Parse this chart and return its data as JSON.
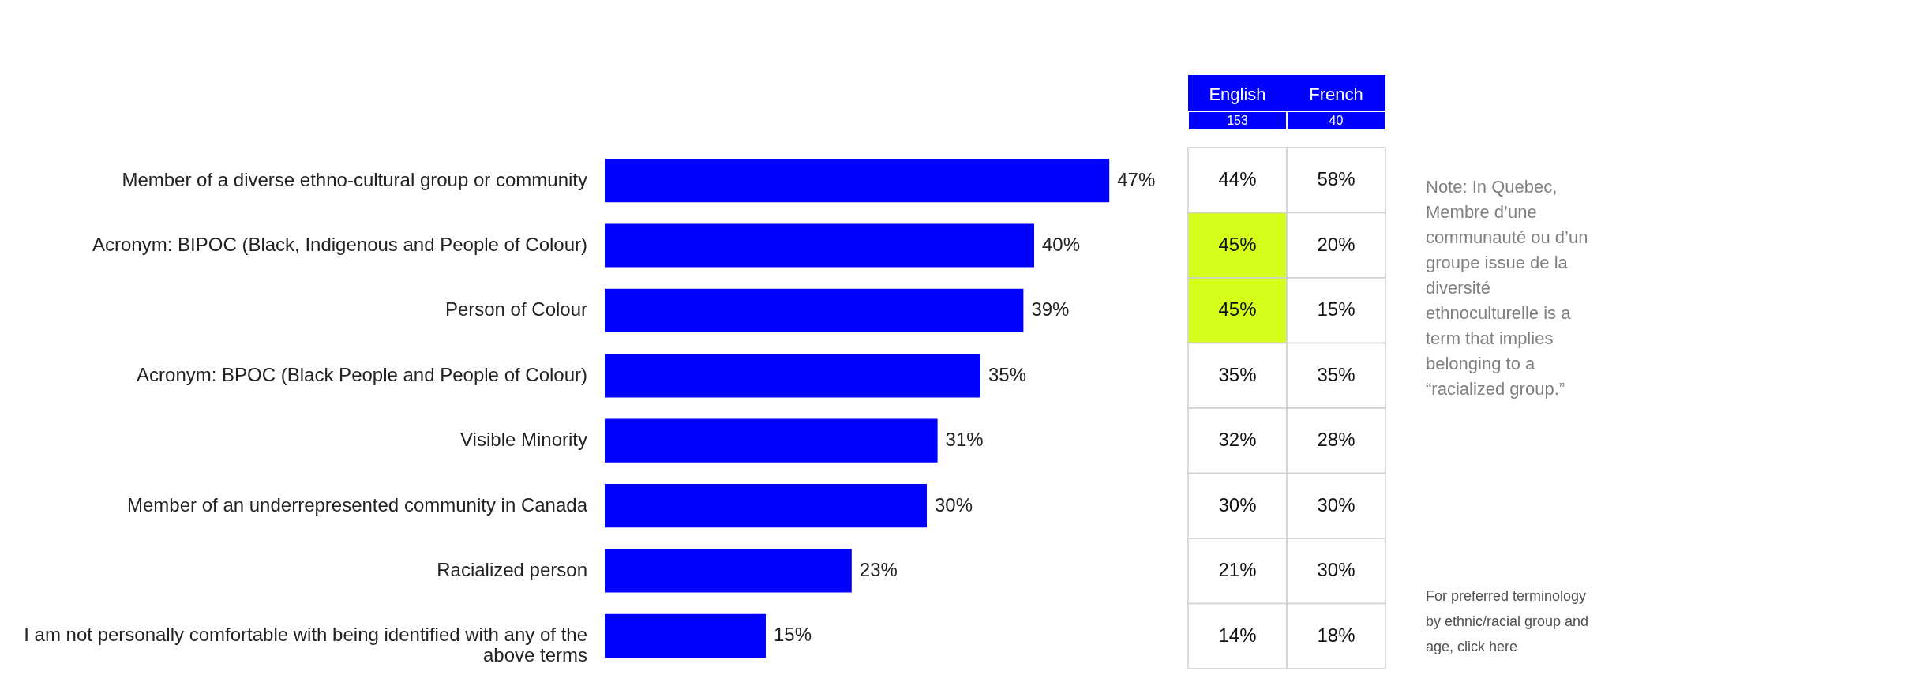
{
  "chart_data": [
    {
      "type": "bar",
      "orientation": "horizontal",
      "categories": [
        "Member of a diverse ethno-cultural group or community",
        "Acronym: BIPOC (Black, Indigenous and People of Colour)",
        "Person of Colour",
        "Acronym: BPOC (Black People and People of Colour)",
        "Visible Minority",
        "Member of an underrepresented community in Canada",
        "Racialized person",
        "I am not personally comfortable with being identified with any of the above terms"
      ],
      "values": [
        47,
        40,
        39,
        35,
        31,
        30,
        23,
        15
      ],
      "value_labels": [
        "47%",
        "40%",
        "39%",
        "35%",
        "31%",
        "30%",
        "23%",
        "15%"
      ],
      "color": "#0000ff"
    },
    {
      "type": "heatmap",
      "categories": [
        "English",
        "French"
      ],
      "y_categories": [
        null,
        null,
        null,
        null,
        null,
        null,
        null,
        null
      ],
      "cells": [
        [
          44,
          58
        ],
        [
          45,
          20
        ],
        [
          45,
          15
        ],
        [
          35,
          35
        ],
        [
          32,
          28
        ],
        [
          30,
          30
        ],
        [
          21,
          30
        ],
        [
          14,
          18
        ]
      ],
      "cell_labels": [
        [
          "44%",
          "58%"
        ],
        [
          "45%",
          "20%"
        ],
        [
          "45%",
          "15%"
        ],
        [
          "35%",
          "35%"
        ],
        [
          "32%",
          "28%"
        ],
        [
          "30%",
          "30%"
        ],
        [
          "21%",
          "30%"
        ],
        [
          "14%",
          "18%"
        ]
      ],
      "colors": [
        [
          "#ffffff",
          "#ffffff"
        ],
        [
          "#d4ff1a",
          "#ffffff"
        ],
        [
          "#d4ff1a",
          "#ffffff"
        ],
        [
          "#ffffff",
          "#ffffff"
        ],
        [
          "#ffffff",
          "#ffffff"
        ],
        [
          "#ffffff",
          "#ffffff"
        ],
        [
          "#ffffff",
          "#ffffff"
        ],
        [
          "#ffffff",
          "#ffffff"
        ]
      ],
      "annotations": [
        "153",
        "40",
        "Note: In Quebec, Membre d’une communauté ou d’un groupe issue de la diversité ethnoculturelle is a term that implies belonging to a “racialized group.”",
        "For preferred terminology by ethnic/racial group and age, click here"
      ]
    }
  ]
}
